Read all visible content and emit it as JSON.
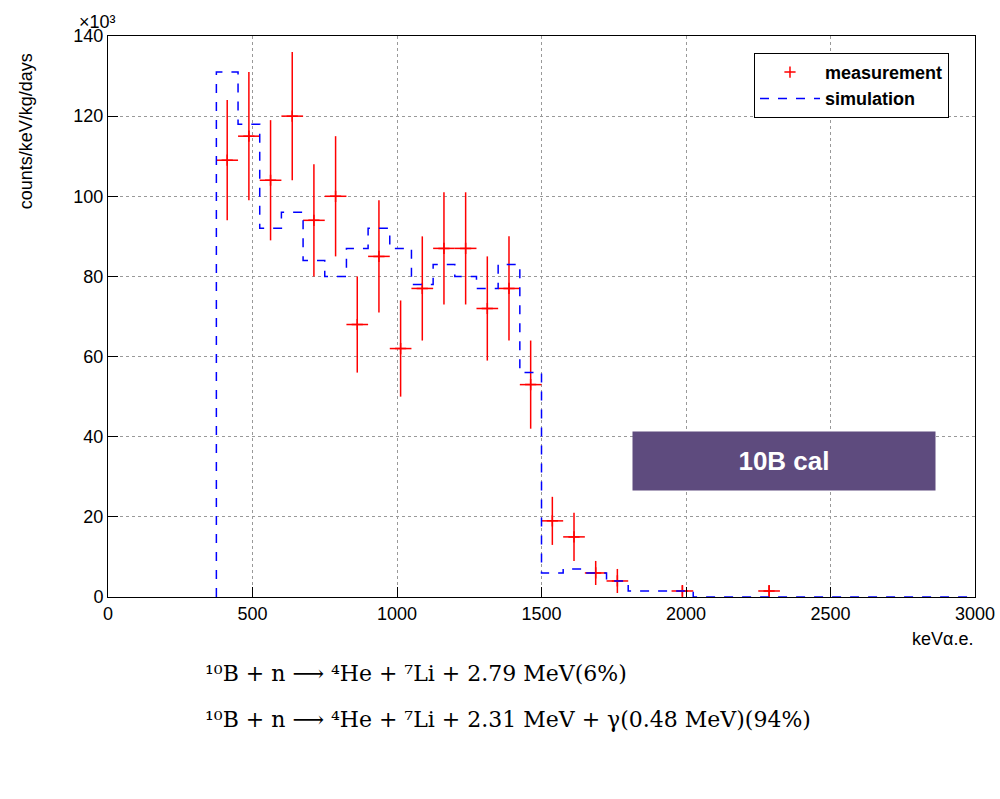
{
  "chart_data": {
    "type": "histogram",
    "x_label": "keVα.e.",
    "y_label": "counts/keV/kg/days",
    "annotations": [
      "×10³",
      "10B cal",
      "¹⁰B + n ⟶ ⁴He + ⁷Li + 2.79 MeV(6%)",
      "¹⁰B + n ⟶ ⁴He + ⁷Li + 2.31 MeV + γ(0.48 MeV)(94%)"
    ],
    "bins": [
      375,
      450,
      525,
      600,
      675,
      750,
      825,
      900,
      975,
      1050,
      1125,
      1200,
      1275,
      1350,
      1425,
      1500,
      1575,
      1650,
      1725,
      1800,
      1875,
      1950,
      2025,
      2100,
      2175,
      2250,
      2325,
      2400,
      2475,
      2550,
      2625,
      2700,
      2775,
      2850,
      2925,
      3000
    ],
    "series": [
      {
        "name": "measurement",
        "type": "scatter",
        "color": "#ff0000",
        "marker": "cross",
        "values": [
          109,
          115,
          104,
          120,
          94,
          100,
          68,
          85,
          62,
          77,
          87,
          87,
          72,
          77,
          53,
          19,
          15,
          6,
          4,
          null,
          null,
          1.5,
          null,
          null,
          null,
          1.5,
          null,
          null,
          null,
          null,
          null,
          null,
          null,
          null,
          null
        ],
        "errors": [
          15,
          16,
          15,
          16,
          14,
          15,
          12,
          14,
          12,
          13,
          14,
          14,
          13,
          13,
          11,
          6,
          6,
          3,
          3,
          null,
          null,
          1.5,
          null,
          null,
          null,
          1.5,
          null,
          null,
          null,
          null,
          null,
          null,
          null,
          null,
          null
        ]
      },
      {
        "name": "simulation",
        "type": "step",
        "color": "#0000ff",
        "line_style": "dash",
        "values": [
          131,
          118,
          92,
          96,
          84,
          80,
          87,
          92,
          87,
          78,
          83,
          80,
          77,
          83,
          56,
          6,
          7,
          6,
          4,
          1.5,
          1.5,
          1.5,
          0,
          0,
          0,
          0,
          0,
          0,
          0,
          0,
          0,
          0,
          0,
          0,
          0
        ]
      }
    ],
    "xlim": [
      0,
      3000
    ],
    "xticks": [
      0,
      500,
      1000,
      1500,
      2000,
      2500,
      3000
    ],
    "ylim": [
      0,
      140
    ],
    "yticks": [
      0,
      20,
      40,
      60,
      80,
      100,
      120,
      140
    ],
    "grid": true,
    "legend": "top right"
  }
}
